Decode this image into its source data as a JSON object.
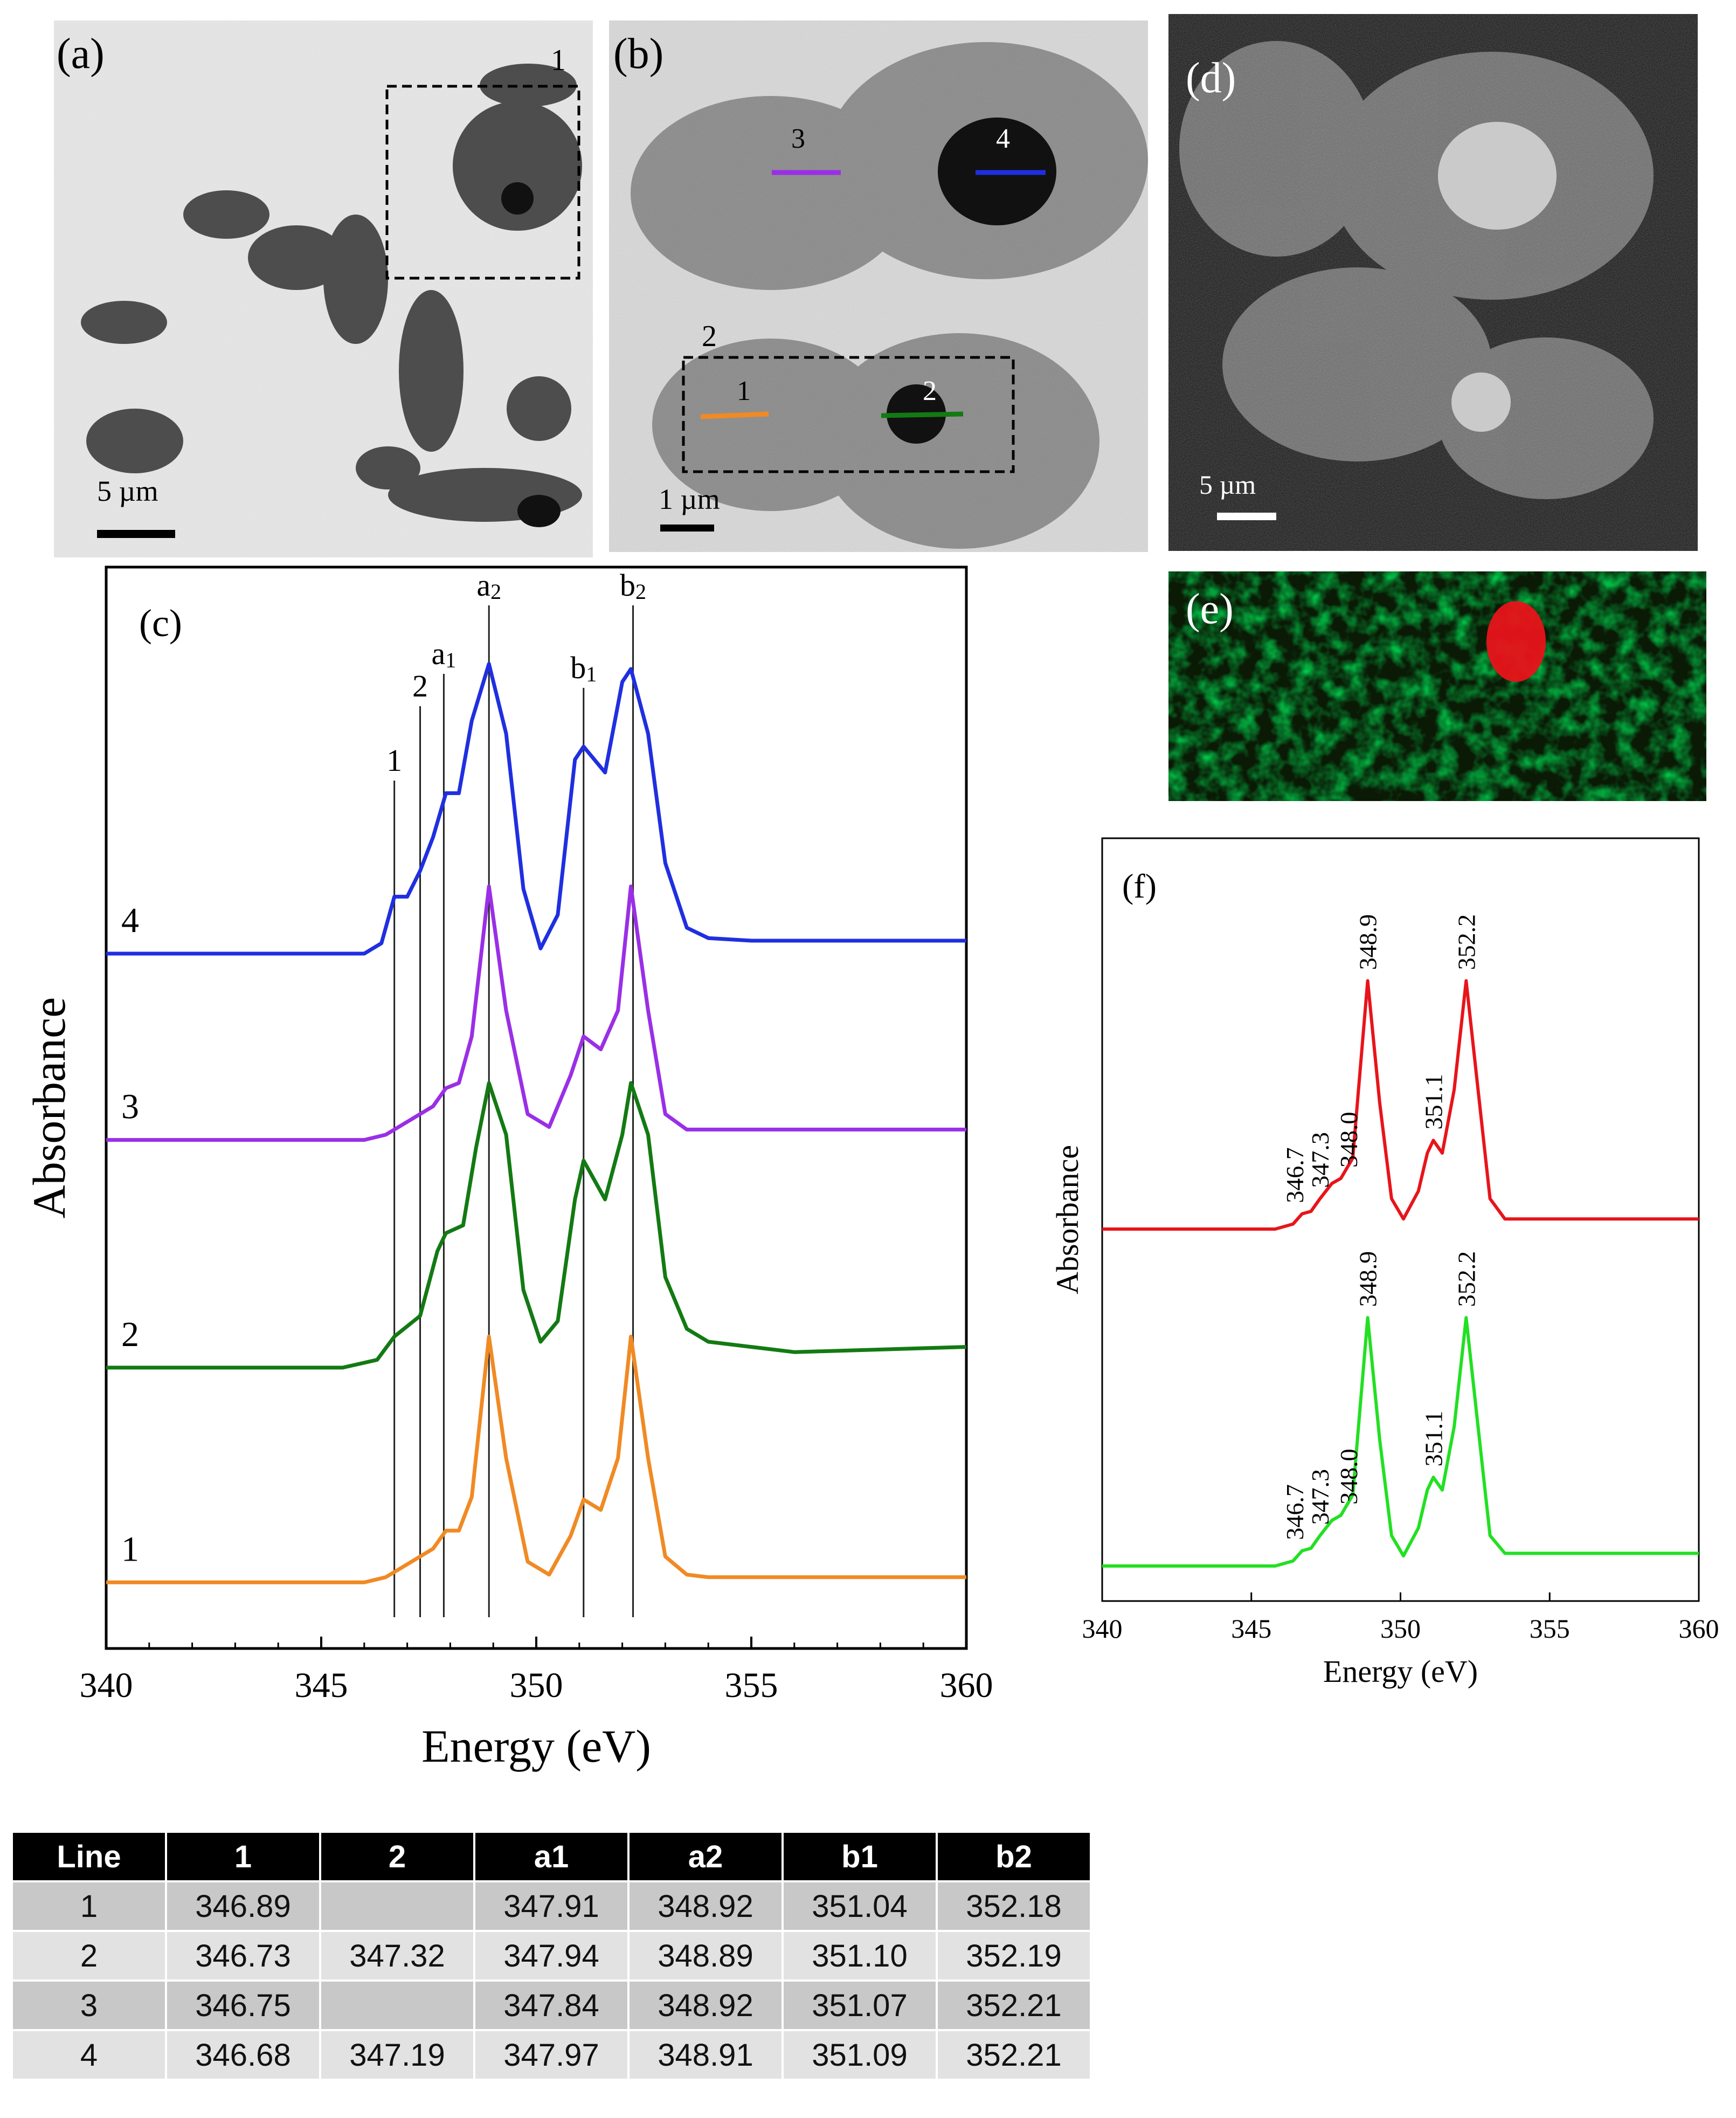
{
  "panels": {
    "a": {
      "label": "(a)",
      "box_label": "1",
      "scale_bar": "5 µm"
    },
    "b": {
      "label": "(b)",
      "box_label": "2",
      "line_labels": [
        "3",
        "4",
        "1",
        "2"
      ],
      "scale_bar": "1 µm"
    },
    "d": {
      "label": "(d)",
      "scale_bar": "5 µm"
    },
    "e": {
      "label": "(e)"
    }
  },
  "colors": {
    "line1": "#f08a24",
    "line2": "#137a13",
    "line3": "#9a2fe6",
    "line4": "#1f2fe0",
    "red": "#e8141a",
    "green": "#22e022"
  },
  "chart_data": [
    {
      "panel": "(c)",
      "type": "line",
      "xlabel": "Energy (eV)",
      "ylabel": "Absorbance",
      "xlim": [
        340,
        360
      ],
      "xticks": [
        340,
        345,
        350,
        355,
        360
      ],
      "series_labels": [
        "1",
        "2",
        "3",
        "4"
      ],
      "marker_lines": [
        {
          "label": "1",
          "x": 346.7
        },
        {
          "label": "2",
          "x": 347.3
        },
        {
          "label": "a1",
          "x": 347.85
        },
        {
          "label": "a2",
          "x": 348.9
        },
        {
          "label": "b1",
          "x": 351.1
        },
        {
          "label": "b2",
          "x": 352.25
        }
      ],
      "series": [
        {
          "name": "1",
          "color": "#f08a24",
          "offset": 0.0,
          "points": [
            [
              340,
              0.02
            ],
            [
              346,
              0.02
            ],
            [
              346.5,
              0.04
            ],
            [
              346.9,
              0.08
            ],
            [
              347.3,
              0.12
            ],
            [
              347.6,
              0.15
            ],
            [
              347.9,
              0.22
            ],
            [
              348.2,
              0.22
            ],
            [
              348.5,
              0.35
            ],
            [
              348.9,
              0.97
            ],
            [
              349.3,
              0.5
            ],
            [
              349.8,
              0.1
            ],
            [
              350.3,
              0.05
            ],
            [
              350.8,
              0.2
            ],
            [
              351.1,
              0.34
            ],
            [
              351.5,
              0.3
            ],
            [
              351.9,
              0.5
            ],
            [
              352.2,
              0.97
            ],
            [
              352.6,
              0.5
            ],
            [
              353.0,
              0.12
            ],
            [
              353.5,
              0.05
            ],
            [
              354.0,
              0.04
            ],
            [
              360,
              0.04
            ]
          ]
        },
        {
          "name": "2",
          "color": "#137a13",
          "offset": 0.85,
          "points": [
            [
              340,
              0.0
            ],
            [
              345.5,
              0.0
            ],
            [
              346.3,
              0.03
            ],
            [
              346.7,
              0.12
            ],
            [
              347.3,
              0.2
            ],
            [
              347.7,
              0.45
            ],
            [
              347.9,
              0.52
            ],
            [
              348.3,
              0.55
            ],
            [
              348.6,
              0.85
            ],
            [
              348.9,
              1.1
            ],
            [
              349.3,
              0.9
            ],
            [
              349.7,
              0.3
            ],
            [
              350.1,
              0.1
            ],
            [
              350.5,
              0.18
            ],
            [
              350.9,
              0.65
            ],
            [
              351.1,
              0.8
            ],
            [
              351.6,
              0.65
            ],
            [
              352.0,
              0.9
            ],
            [
              352.2,
              1.1
            ],
            [
              352.6,
              0.9
            ],
            [
              353.0,
              0.35
            ],
            [
              353.5,
              0.15
            ],
            [
              354.0,
              0.1
            ],
            [
              355.0,
              0.08
            ],
            [
              356.0,
              0.06
            ],
            [
              360,
              0.08
            ]
          ]
        },
        {
          "name": "3",
          "color": "#9a2fe6",
          "offset": 1.73,
          "points": [
            [
              340,
              0.0
            ],
            [
              346,
              0.0
            ],
            [
              346.5,
              0.02
            ],
            [
              346.8,
              0.05
            ],
            [
              347.3,
              0.1
            ],
            [
              347.6,
              0.13
            ],
            [
              347.9,
              0.2
            ],
            [
              348.2,
              0.22
            ],
            [
              348.5,
              0.4
            ],
            [
              348.9,
              0.98
            ],
            [
              349.3,
              0.5
            ],
            [
              349.8,
              0.1
            ],
            [
              350.3,
              0.05
            ],
            [
              350.8,
              0.25
            ],
            [
              351.1,
              0.4
            ],
            [
              351.5,
              0.35
            ],
            [
              351.9,
              0.5
            ],
            [
              352.2,
              0.98
            ],
            [
              352.6,
              0.5
            ],
            [
              353.0,
              0.1
            ],
            [
              353.5,
              0.04
            ],
            [
              360,
              0.04
            ]
          ]
        },
        {
          "name": "4",
          "color": "#1f2fe0",
          "offset": 2.45,
          "points": [
            [
              340,
              0.0
            ],
            [
              346,
              0.0
            ],
            [
              346.4,
              0.04
            ],
            [
              346.7,
              0.22
            ],
            [
              347.0,
              0.22
            ],
            [
              347.3,
              0.32
            ],
            [
              347.6,
              0.45
            ],
            [
              347.9,
              0.62
            ],
            [
              348.2,
              0.62
            ],
            [
              348.5,
              0.9
            ],
            [
              348.9,
              1.12
            ],
            [
              349.3,
              0.85
            ],
            [
              349.7,
              0.25
            ],
            [
              350.1,
              0.02
            ],
            [
              350.5,
              0.15
            ],
            [
              350.9,
              0.75
            ],
            [
              351.1,
              0.8
            ],
            [
              351.6,
              0.7
            ],
            [
              352.0,
              1.05
            ],
            [
              352.2,
              1.1
            ],
            [
              352.6,
              0.85
            ],
            [
              353.0,
              0.35
            ],
            [
              353.5,
              0.1
            ],
            [
              354.0,
              0.06
            ],
            [
              355.0,
              0.05
            ],
            [
              360,
              0.05
            ]
          ]
        }
      ]
    },
    {
      "panel": "(f)",
      "type": "line",
      "xlabel": "Energy (eV)",
      "ylabel": "Absorbance",
      "xlim": [
        340,
        360
      ],
      "xticks": [
        340,
        345,
        350,
        355,
        360
      ],
      "series": [
        {
          "name": "red",
          "color": "#e8141a",
          "offset": 1.0,
          "points": [
            [
              340,
              0.0
            ],
            [
              345.8,
              0.0
            ],
            [
              346.4,
              0.02
            ],
            [
              346.7,
              0.06
            ],
            [
              347.0,
              0.07
            ],
            [
              347.3,
              0.12
            ],
            [
              347.7,
              0.18
            ],
            [
              348.0,
              0.2
            ],
            [
              348.4,
              0.28
            ],
            [
              348.7,
              0.7
            ],
            [
              348.9,
              0.98
            ],
            [
              349.3,
              0.5
            ],
            [
              349.7,
              0.12
            ],
            [
              350.1,
              0.04
            ],
            [
              350.6,
              0.15
            ],
            [
              350.9,
              0.3
            ],
            [
              351.1,
              0.35
            ],
            [
              351.4,
              0.3
            ],
            [
              351.8,
              0.55
            ],
            [
              352.2,
              0.98
            ],
            [
              352.6,
              0.55
            ],
            [
              353.0,
              0.12
            ],
            [
              353.5,
              0.04
            ],
            [
              360,
              0.04
            ]
          ],
          "peak_labels": [
            {
              "x": 346.7,
              "text": "346.7"
            },
            {
              "x": 347.3,
              "text": "347.3"
            },
            {
              "x": 348.0,
              "text": "348.0"
            },
            {
              "x": 348.9,
              "text": "348.9"
            },
            {
              "x": 351.1,
              "text": "351.1"
            },
            {
              "x": 352.2,
              "text": "352.2"
            }
          ]
        },
        {
          "name": "green",
          "color": "#22e022",
          "offset": 0.0,
          "points": [
            [
              340,
              0.0
            ],
            [
              345.8,
              0.0
            ],
            [
              346.4,
              0.02
            ],
            [
              346.7,
              0.06
            ],
            [
              347.0,
              0.07
            ],
            [
              347.3,
              0.12
            ],
            [
              347.7,
              0.18
            ],
            [
              348.0,
              0.2
            ],
            [
              348.4,
              0.28
            ],
            [
              348.7,
              0.7
            ],
            [
              348.9,
              0.98
            ],
            [
              349.3,
              0.5
            ],
            [
              349.7,
              0.12
            ],
            [
              350.1,
              0.04
            ],
            [
              350.6,
              0.15
            ],
            [
              350.9,
              0.3
            ],
            [
              351.1,
              0.35
            ],
            [
              351.4,
              0.3
            ],
            [
              351.8,
              0.55
            ],
            [
              352.2,
              0.98
            ],
            [
              352.6,
              0.55
            ],
            [
              353.0,
              0.12
            ],
            [
              353.5,
              0.05
            ],
            [
              360,
              0.05
            ]
          ],
          "peak_labels": [
            {
              "x": 346.7,
              "text": "346.7"
            },
            {
              "x": 347.3,
              "text": "347.3"
            },
            {
              "x": 348.0,
              "text": "348.0"
            },
            {
              "x": 348.9,
              "text": "348.9"
            },
            {
              "x": 351.1,
              "text": "351.1"
            },
            {
              "x": 352.2,
              "text": "352.2"
            }
          ]
        }
      ]
    },
    {
      "type": "table",
      "columns": [
        "Line",
        "1",
        "2",
        "a1",
        "a2",
        "b1",
        "b2"
      ],
      "rows": [
        [
          "1",
          "346.89",
          "",
          "347.91",
          "348.92",
          "351.04",
          "352.18"
        ],
        [
          "2",
          "346.73",
          "347.32",
          "347.94",
          "348.89",
          "351.10",
          "352.19"
        ],
        [
          "3",
          "346.75",
          "",
          "347.84",
          "348.92",
          "351.07",
          "352.21"
        ],
        [
          "4",
          "346.68",
          "347.19",
          "347.97",
          "348.91",
          "351.09",
          "352.21"
        ]
      ]
    }
  ],
  "panel_c_label": "(c)",
  "panel_f_label": "(f)"
}
